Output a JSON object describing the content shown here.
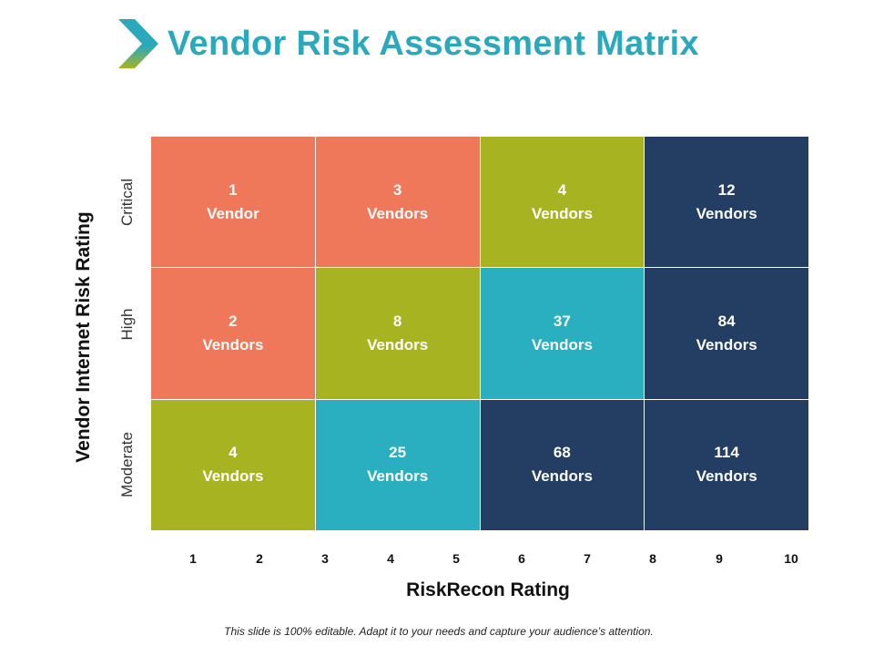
{
  "title": "Vendor Risk Assessment Matrix",
  "colors": {
    "title": "#2aa9bc",
    "orange": "#ef785a",
    "olive": "#a8b322",
    "teal": "#2aafc0",
    "navy": "#233e62"
  },
  "y_axis": {
    "title": "Vendor Internet Risk Rating",
    "levels": [
      "Critical",
      "High",
      "Moderate"
    ]
  },
  "x_axis": {
    "title": "RiskRecon Rating",
    "ticks": [
      "1",
      "2",
      "3",
      "4",
      "5",
      "6",
      "7",
      "8",
      "9",
      "10"
    ]
  },
  "matrix": {
    "rows": [
      [
        {
          "count": "1",
          "label": "Vendor",
          "color": "orange"
        },
        {
          "count": "3",
          "label": "Vendors",
          "color": "orange"
        },
        {
          "count": "4",
          "label": "Vendors",
          "color": "olive"
        },
        {
          "count": "12",
          "label": "Vendors",
          "color": "navy"
        }
      ],
      [
        {
          "count": "2",
          "label": "Vendors",
          "color": "orange"
        },
        {
          "count": "8",
          "label": "Vendors",
          "color": "olive"
        },
        {
          "count": "37",
          "label": "Vendors",
          "color": "teal"
        },
        {
          "count": "84",
          "label": "Vendors",
          "color": "navy"
        }
      ],
      [
        {
          "count": "4",
          "label": "Vendors",
          "color": "olive"
        },
        {
          "count": "25",
          "label": "Vendors",
          "color": "teal"
        },
        {
          "count": "68",
          "label": "Vendors",
          "color": "navy"
        },
        {
          "count": "114",
          "label": "Vendors",
          "color": "navy"
        }
      ]
    ]
  },
  "footer": "This slide is 100% editable. Adapt it to your needs and capture your audience’s attention."
}
